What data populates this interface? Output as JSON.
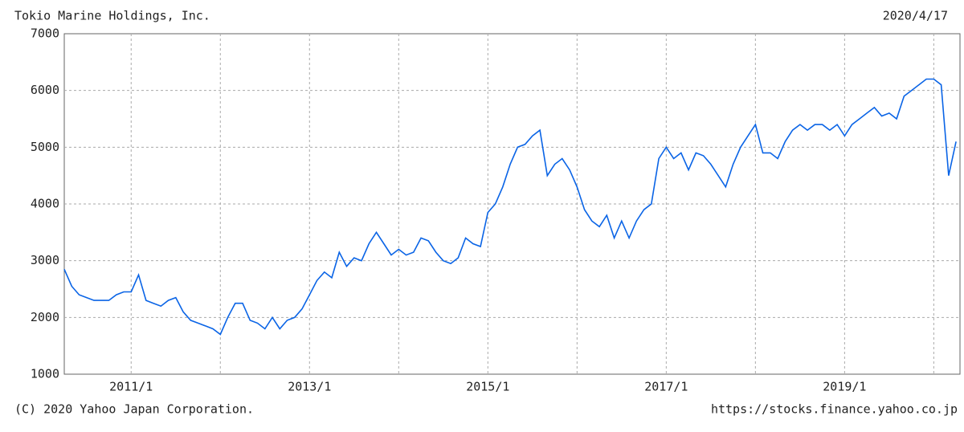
{
  "chart_data": {
    "type": "line",
    "title": "Tokio Marine Holdings, Inc.",
    "date": "2020/4/17",
    "copyright": "(C) 2020 Yahoo Japan Corporation.",
    "source": "https://stocks.finance.yahoo.co.jp",
    "x": [
      "2010/4",
      "2010/5",
      "2010/6",
      "2010/7",
      "2010/8",
      "2010/9",
      "2010/10",
      "2010/11",
      "2010/12",
      "2011/1",
      "2011/2",
      "2011/3",
      "2011/4",
      "2011/5",
      "2011/6",
      "2011/7",
      "2011/8",
      "2011/9",
      "2011/10",
      "2011/11",
      "2011/12",
      "2012/1",
      "2012/2",
      "2012/3",
      "2012/4",
      "2012/5",
      "2012/6",
      "2012/7",
      "2012/8",
      "2012/9",
      "2012/10",
      "2012/11",
      "2012/12",
      "2013/1",
      "2013/2",
      "2013/3",
      "2013/4",
      "2013/5",
      "2013/6",
      "2013/7",
      "2013/8",
      "2013/9",
      "2013/10",
      "2013/11",
      "2013/12",
      "2014/1",
      "2014/2",
      "2014/3",
      "2014/4",
      "2014/5",
      "2014/6",
      "2014/7",
      "2014/8",
      "2014/9",
      "2014/10",
      "2014/11",
      "2014/12",
      "2015/1",
      "2015/2",
      "2015/3",
      "2015/4",
      "2015/5",
      "2015/6",
      "2015/7",
      "2015/8",
      "2015/9",
      "2015/10",
      "2015/11",
      "2015/12",
      "2016/1",
      "2016/2",
      "2016/3",
      "2016/4",
      "2016/5",
      "2016/6",
      "2016/7",
      "2016/8",
      "2016/9",
      "2016/10",
      "2016/11",
      "2016/12",
      "2017/1",
      "2017/2",
      "2017/3",
      "2017/4",
      "2017/5",
      "2017/6",
      "2017/7",
      "2017/8",
      "2017/9",
      "2017/10",
      "2017/11",
      "2017/12",
      "2018/1",
      "2018/2",
      "2018/3",
      "2018/4",
      "2018/5",
      "2018/6",
      "2018/7",
      "2018/8",
      "2018/9",
      "2018/10",
      "2018/11",
      "2018/12",
      "2019/1",
      "2019/2",
      "2019/3",
      "2019/4",
      "2019/5",
      "2019/6",
      "2019/7",
      "2019/8",
      "2019/9",
      "2019/10",
      "2019/11",
      "2019/12",
      "2020/1",
      "2020/2",
      "2020/3",
      "2020/4"
    ],
    "series": [
      {
        "color": "#0a64e6",
        "values": [
          2850,
          2550,
          2400,
          2350,
          2300,
          2300,
          2300,
          2400,
          2450,
          2450,
          2750,
          2300,
          2250,
          2200,
          2300,
          2350,
          2100,
          1950,
          1900,
          1850,
          1800,
          1700,
          2000,
          2250,
          2250,
          1950,
          1900,
          1800,
          2000,
          1800,
          1950,
          2000,
          2150,
          2400,
          2650,
          2800,
          2700,
          3150,
          2900,
          3050,
          3000,
          3300,
          3500,
          3300,
          3100,
          3200,
          3100,
          3150,
          3400,
          3350,
          3150,
          3000,
          2950,
          3050,
          3400,
          3300,
          3250,
          3850,
          4000,
          4300,
          4700,
          5000,
          5050,
          5200,
          5300,
          4500,
          4700,
          4800,
          4600,
          4300,
          3900,
          3700,
          3600,
          3800,
          3400,
          3700,
          3400,
          3700,
          3900,
          4000,
          4800,
          5000,
          4800,
          4900,
          4600,
          4900,
          4850,
          4700,
          4500,
          4300,
          4700,
          5000,
          5200,
          5400,
          4900,
          4900,
          4800,
          5100,
          5300,
          5400,
          5300,
          5400,
          5400,
          5300,
          5400,
          5200,
          5400,
          5500,
          5600,
          5700,
          5550,
          5600,
          5500,
          5900,
          6000,
          6100,
          6200,
          6200,
          6100,
          4500,
          5100
        ]
      }
    ],
    "xlim": [
      "2010/4",
      "2020/4/17"
    ],
    "xticks": [
      "2011/1",
      "2013/1",
      "2015/1",
      "2017/1",
      "2019/1"
    ],
    "xgrid": [
      "2012/1",
      "2014/1",
      "2016/1",
      "2018/1",
      "2020/1"
    ],
    "ylim": [
      1000,
      7000
    ],
    "yticks": [
      1000,
      2000,
      3000,
      4000,
      5000,
      6000,
      7000
    ],
    "grid": true
  }
}
